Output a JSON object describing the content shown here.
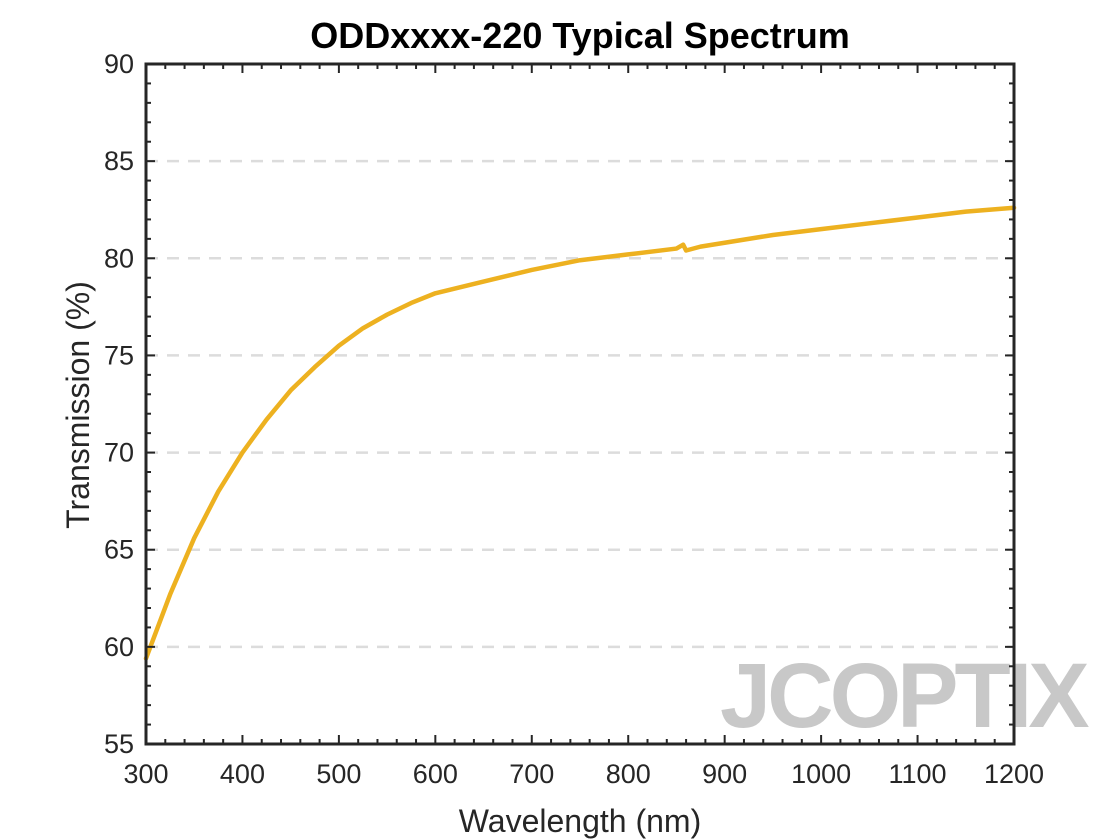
{
  "chart_data": {
    "type": "line",
    "title": "ODDxxxx-220 Typical Spectrum",
    "xlabel": "Wavelength (nm)",
    "ylabel": "Transmission (%)",
    "xlim": [
      300,
      1200
    ],
    "ylim": [
      55,
      90
    ],
    "xticks": [
      300,
      400,
      500,
      600,
      700,
      800,
      900,
      1000,
      1100,
      1200
    ],
    "yticks": [
      55,
      60,
      65,
      70,
      75,
      80,
      85,
      90
    ],
    "grid": "horizontal dashed",
    "series": [
      {
        "color": "#EDB120",
        "x": [
          300,
          325,
          350,
          375,
          400,
          425,
          450,
          475,
          500,
          525,
          550,
          575,
          600,
          625,
          650,
          700,
          750,
          800,
          850,
          857,
          860,
          875,
          900,
          950,
          1000,
          1050,
          1100,
          1150,
          1200
        ],
        "y": [
          59.4,
          62.7,
          65.6,
          68.0,
          70.0,
          71.7,
          73.2,
          74.4,
          75.5,
          76.4,
          77.1,
          77.7,
          78.2,
          78.5,
          78.8,
          79.4,
          79.9,
          80.2,
          80.5,
          80.7,
          80.4,
          80.6,
          80.8,
          81.2,
          81.5,
          81.8,
          82.1,
          82.4,
          82.6
        ]
      }
    ]
  },
  "watermark": {
    "text": "JCOPTIX",
    "color": "#c8c8c8",
    "accent_color": "#f5d2b0"
  },
  "colors": {
    "line": "#EDB120",
    "grid": "#dcdcdc",
    "axis": "#262626"
  }
}
